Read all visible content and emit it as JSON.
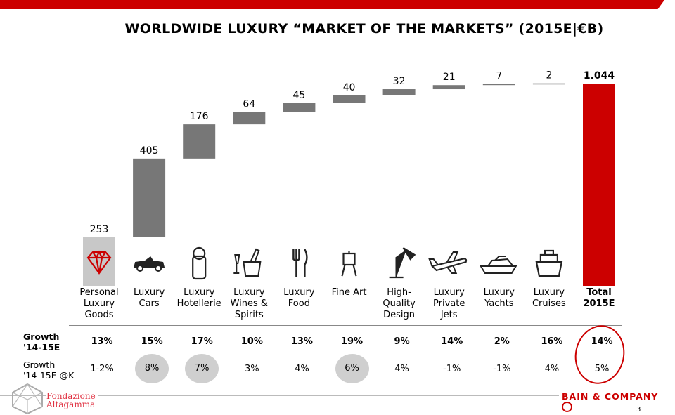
{
  "title": "WORLDWIDE LUXURY “MARKET OF THE MARKETS” (2015E|€B)",
  "colors": {
    "accent": "#cc0000",
    "bar": "#777777",
    "first_bar": "#c8c8c8",
    "total_bar": "#cc0000",
    "highlight": "#cfcfcf"
  },
  "chart_data": {
    "type": "waterfall",
    "title": "WORLDWIDE LUXURY “MARKET OF THE MARKETS” (2015E|€B)",
    "categories": [
      "Personal Luxury Goods",
      "Luxury Cars",
      "Luxury Hotellerie",
      "Luxury Wines & Spirits",
      "Luxury Food",
      "Fine Art",
      "High-Quality Design",
      "Luxury Private Jets",
      "Luxury Yachts",
      "Luxury Cruises",
      "Total 2015E"
    ],
    "category_lines": [
      [
        "Personal",
        "Luxury",
        "Goods"
      ],
      [
        "Luxury",
        "Cars"
      ],
      [
        "Luxury",
        "Hotellerie"
      ],
      [
        "Luxury",
        "Wines &",
        "Spirits"
      ],
      [
        "Luxury",
        "Food"
      ],
      [
        "Fine Art"
      ],
      [
        "High-Quality",
        "Design"
      ],
      [
        "Luxury",
        "Private",
        "Jets"
      ],
      [
        "Luxury",
        "Yachts"
      ],
      [
        "Luxury",
        "Cruises"
      ],
      [
        "Total",
        "2015E"
      ]
    ],
    "values": [
      253,
      405,
      176,
      64,
      45,
      40,
      32,
      21,
      7,
      2,
      1044
    ],
    "value_labels": [
      "253",
      "405",
      "176",
      "64",
      "45",
      "40",
      "32",
      "21",
      "7",
      "2",
      "1.044"
    ],
    "icons": [
      "diamond-icon",
      "car-icon",
      "door-hanger-icon",
      "wine-bucket-icon",
      "fork-knife-icon",
      "easel-icon",
      "desk-lamp-icon",
      "airplane-icon",
      "yacht-icon",
      "cruise-ship-icon",
      ""
    ],
    "unit": "€B",
    "grid": false
  },
  "table": {
    "row1_label": [
      "Growth",
      "'14-15E"
    ],
    "row2_label": [
      "Growth",
      "'14-15E @K"
    ],
    "growth": [
      "13%",
      "15%",
      "17%",
      "10%",
      "13%",
      "19%",
      "9%",
      "14%",
      "2%",
      "16%",
      "14%"
    ],
    "growth_k": [
      "1-2%",
      "8%",
      "7%",
      "3%",
      "4%",
      "6%",
      "4%",
      "-1%",
      "-1%",
      "4%",
      "5%"
    ],
    "highlighted_k": [
      1,
      2,
      5
    ],
    "circled_column": 10
  },
  "footer": {
    "left_logo": [
      "Fondazione",
      "Altagamma"
    ],
    "right_logo": "BAIN & COMPANY",
    "page": "3"
  }
}
